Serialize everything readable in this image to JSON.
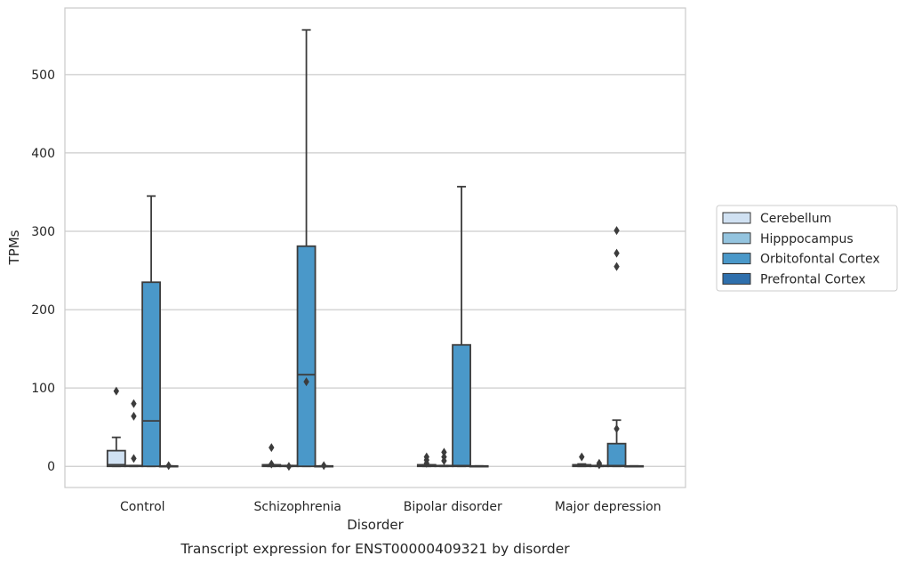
{
  "chart_data": {
    "type": "box",
    "caption": "Transcript expression for ENST00000409321 by disorder",
    "xlabel": "Disorder",
    "ylabel": "TPMs",
    "ylim": [
      -27,
      585
    ],
    "yticks": [
      0,
      100,
      200,
      300,
      400,
      500
    ],
    "grid": "horizontal",
    "legend_placement": "right",
    "categories": [
      "Control",
      "Schizophrenia",
      "Bipolar disorder",
      "Major depression"
    ],
    "series": [
      {
        "name": "Cerebellum",
        "color": "#d0e1f2",
        "boxes": [
          {
            "q1": 0,
            "median": 2,
            "q3": 20,
            "whisker_low": 0,
            "whisker_high": 37,
            "outliers": [
              96
            ]
          },
          {
            "q1": 0,
            "median": 1,
            "q3": 2,
            "whisker_low": 0,
            "whisker_high": 2,
            "outliers": [
              24,
              3
            ]
          },
          {
            "q1": 0,
            "median": 1,
            "q3": 2,
            "whisker_low": 0,
            "whisker_high": 2,
            "outliers": [
              12,
              8,
              4
            ]
          },
          {
            "q1": 0,
            "median": 1,
            "q3": 2,
            "whisker_low": 0,
            "whisker_high": 3,
            "outliers": [
              12
            ]
          }
        ]
      },
      {
        "name": "Hipppocampus",
        "color": "#94c4df",
        "boxes": [
          {
            "q1": 0,
            "median": 0.5,
            "q3": 1,
            "whisker_low": 0,
            "whisker_high": 1,
            "outliers": [
              80,
              64,
              10
            ]
          },
          {
            "q1": 0,
            "median": 0.5,
            "q3": 1,
            "whisker_low": 0,
            "whisker_high": 1,
            "outliers": [
              0
            ]
          },
          {
            "q1": 0,
            "median": 0.5,
            "q3": 1,
            "whisker_low": 0,
            "whisker_high": 1,
            "outliers": [
              18,
              12,
              7
            ]
          },
          {
            "q1": 0,
            "median": 0.5,
            "q3": 1,
            "whisker_low": 0,
            "whisker_high": 1,
            "outliers": [
              4,
              2
            ]
          }
        ]
      },
      {
        "name": "Orbitofontal Cortex",
        "color": "#4a98c9",
        "boxes": [
          {
            "q1": 0,
            "median": 58,
            "q3": 235,
            "whisker_low": 0,
            "whisker_high": 345,
            "outliers": []
          },
          {
            "q1": 0,
            "median": 117,
            "q3": 281,
            "whisker_low": 0,
            "whisker_high": 557,
            "outliers": [
              108
            ]
          },
          {
            "q1": 0,
            "median": 1,
            "q3": 155,
            "whisker_low": 0,
            "whisker_high": 357,
            "outliers": []
          },
          {
            "q1": 0,
            "median": 1,
            "q3": 29,
            "whisker_low": 0,
            "whisker_high": 59,
            "outliers": [
              301,
              272,
              255,
              48
            ]
          }
        ]
      },
      {
        "name": "Prefrontal Cortex",
        "color": "#2e6fac",
        "boxes": [
          {
            "q1": 0,
            "median": 0,
            "q3": 0.5,
            "whisker_low": 0,
            "whisker_high": 0.5,
            "outliers": [
              1
            ]
          },
          {
            "q1": 0,
            "median": 0,
            "q3": 0.5,
            "whisker_low": 0,
            "whisker_high": 0.5,
            "outliers": [
              1
            ]
          },
          {
            "q1": 0,
            "median": 0,
            "q3": 0.5,
            "whisker_low": 0,
            "whisker_high": 0.5,
            "outliers": []
          },
          {
            "q1": 0,
            "median": 0,
            "q3": 0.5,
            "whisker_low": 0,
            "whisker_high": 0.5,
            "outliers": []
          }
        ]
      }
    ]
  }
}
